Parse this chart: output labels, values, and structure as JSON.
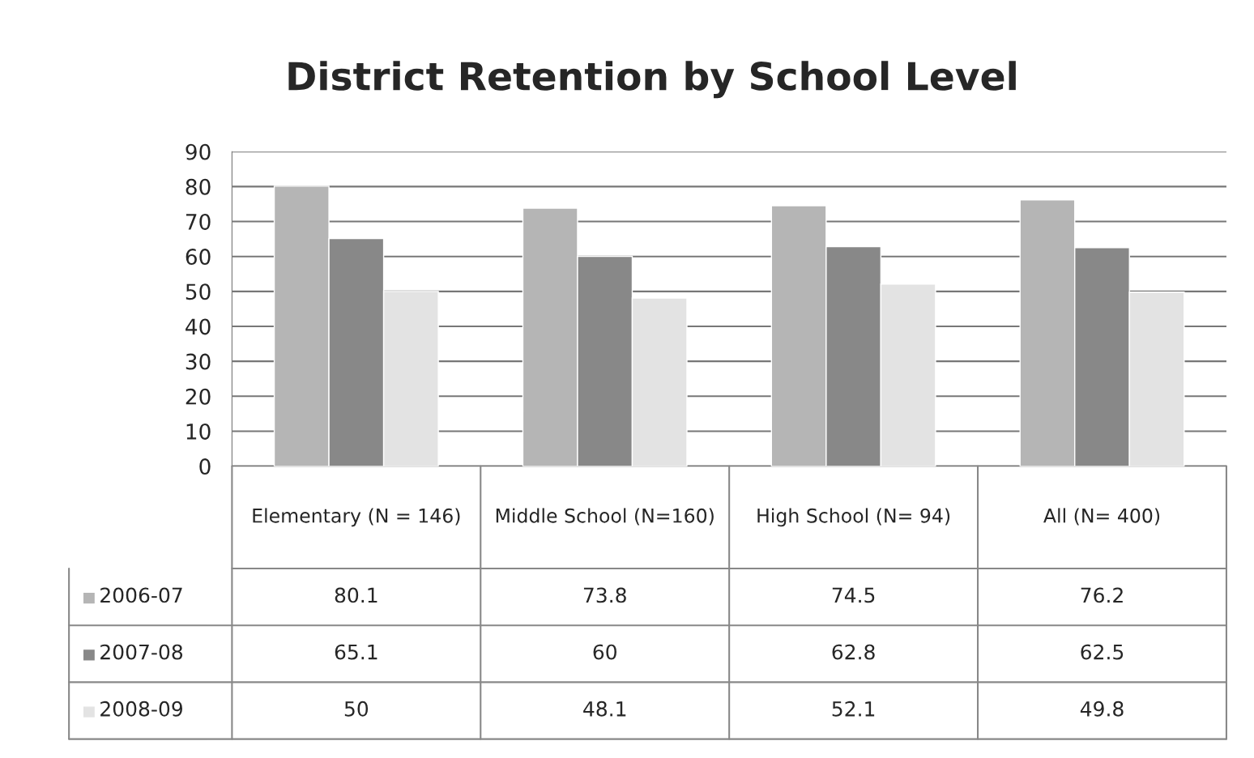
{
  "chart_data": {
    "type": "bar",
    "title": "District Retention by School Level",
    "categories": [
      "Elementary (N = 146)",
      "Middle School (N=160)",
      "High School (N= 94)",
      "All (N= 400)"
    ],
    "series": [
      {
        "name": "2006-07",
        "color": "#b5b5b5",
        "values": [
          80.1,
          73.8,
          74.5,
          76.2
        ]
      },
      {
        "name": "2007-08",
        "color": "#888888",
        "values": [
          65.1,
          60,
          62.8,
          62.5
        ]
      },
      {
        "name": "2008-09",
        "color": "#e3e3e3",
        "values": [
          50,
          48.1,
          52.1,
          49.8
        ]
      }
    ],
    "ylim": [
      0,
      90
    ],
    "yticks": [
      0,
      10,
      20,
      30,
      40,
      50,
      60,
      70,
      80,
      90
    ],
    "grid": "y",
    "data_labels": true,
    "legend": "bottom left"
  }
}
